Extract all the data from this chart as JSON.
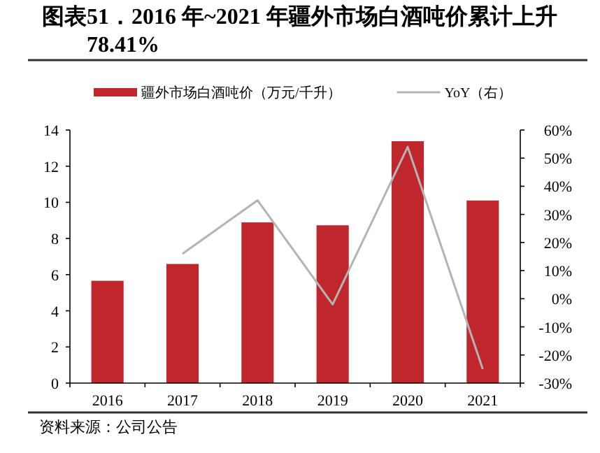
{
  "chart_data": {
    "type": "bar",
    "title": "图表51．2016 年~2021 年疆外市场白酒吨价累计上升 78.41%",
    "categories": [
      "2016",
      "2017",
      "2018",
      "2019",
      "2020",
      "2021"
    ],
    "series": [
      {
        "name": "疆外市场白酒吨价（万元/千升）",
        "color": "#c0272d",
        "values": [
          5.66,
          6.59,
          8.89,
          8.73,
          13.38,
          10.1
        ]
      },
      {
        "name": "YoY（右）",
        "type": "line",
        "axis": "y2",
        "color": "#b4b4b4",
        "values": [
          null,
          16,
          35,
          -2,
          54,
          -25
        ]
      }
    ],
    "ylim": [
      0,
      14
    ],
    "yticks": [
      0,
      2,
      4,
      6,
      8,
      10,
      12,
      14
    ],
    "y2lim": [
      -30,
      60
    ],
    "y2ticks": [
      {
        "value": -30,
        "label": "-30%"
      },
      {
        "value": -20,
        "label": "-20%"
      },
      {
        "value": -10,
        "label": "-10%"
      },
      {
        "value": 0,
        "label": "0%"
      },
      {
        "value": 10,
        "label": "10%"
      },
      {
        "value": 20,
        "label": "20%"
      },
      {
        "value": 30,
        "label": "30%"
      },
      {
        "value": 40,
        "label": "40%"
      },
      {
        "value": 50,
        "label": "50%"
      },
      {
        "value": 60,
        "label": "60%"
      }
    ],
    "legend": "top",
    "grid": false,
    "annotations": [
      "资料来源：公司公告"
    ]
  }
}
